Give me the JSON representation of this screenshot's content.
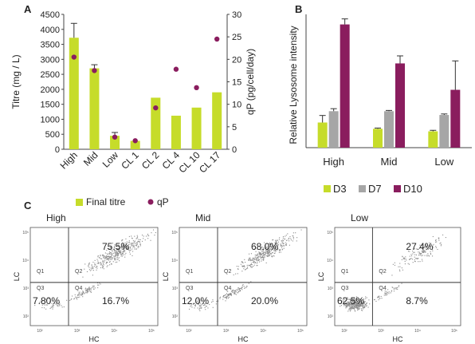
{
  "figure": {
    "panels": [
      "A",
      "B",
      "C"
    ]
  },
  "chart_data": [
    {
      "type": "bar",
      "panel": "A",
      "categories": [
        "High",
        "Mid",
        "Low",
        "CL 1",
        "CL 2",
        "CL 4",
        "CL 10",
        "CL 17"
      ],
      "ylabel": "Titre (mg / L)",
      "ylim": [
        0,
        4500
      ],
      "yticks": [
        0,
        500,
        1000,
        1500,
        2000,
        2500,
        3000,
        3500,
        4000,
        4500
      ],
      "y2label": "qP (pg/cell/day)",
      "y2lim": [
        0,
        30
      ],
      "y2ticks": [
        0,
        5,
        10,
        15,
        20,
        25,
        30
      ],
      "series": [
        {
          "name": "Final titre",
          "type": "bar",
          "axis": "left",
          "color": "#c6dc2a",
          "values": [
            3720,
            2700,
            450,
            280,
            1720,
            1120,
            1390,
            1900
          ],
          "errors": [
            480,
            120,
            110,
            0,
            0,
            0,
            0,
            0
          ]
        },
        {
          "name": "qP",
          "type": "scatter",
          "axis": "right",
          "color": "#8a1d5e",
          "values": [
            20.5,
            17.5,
            2.7,
            1.9,
            9.2,
            17.8,
            13.7,
            24.5
          ]
        }
      ],
      "legend": "bottom"
    },
    {
      "type": "bar",
      "panel": "B",
      "categories": [
        "High",
        "Mid",
        "Low"
      ],
      "ylabel": "Relative Lysosome intensity",
      "series": [
        {
          "name": "D3",
          "color": "#c6dc2a",
          "values": [
            1.0,
            0.75,
            0.65
          ],
          "errors": [
            0.28,
            0.03,
            0.04
          ]
        },
        {
          "name": "D7",
          "color": "#a6a6a6",
          "values": [
            1.45,
            1.45,
            1.3
          ],
          "errors": [
            0.1,
            0.03,
            0.04
          ]
        },
        {
          "name": "D10",
          "color": "#8a1d5e",
          "values": [
            4.9,
            3.35,
            2.3
          ],
          "errors": [
            0.22,
            0.3,
            1.15
          ]
        }
      ],
      "legend": "bottom"
    },
    {
      "type": "scatter",
      "panel": "C",
      "xlabel": "HC",
      "ylabel": "LC",
      "quadrant_labels": [
        "Q1",
        "Q2",
        "Q3",
        "Q4"
      ],
      "plots": [
        {
          "title": "High",
          "q2": "75.5%",
          "q3": "7.80%",
          "q4": "16.7%"
        },
        {
          "title": "Mid",
          "q2": "68.0%",
          "q3": "12.0%",
          "q4": "20.0%"
        },
        {
          "title": "Low",
          "q2": "27.4%",
          "q3": "62.5%",
          "q4": "8.7%"
        }
      ]
    }
  ]
}
